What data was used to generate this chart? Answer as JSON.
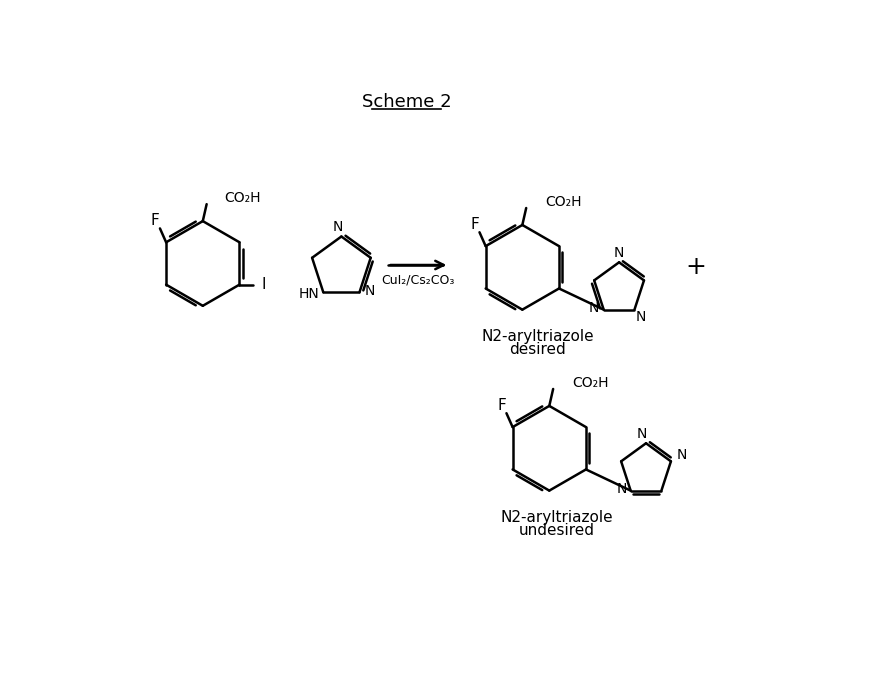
{
  "title": "Scheme 2",
  "background_color": "#ffffff",
  "line_color": "#000000",
  "text_color": "#000000",
  "figsize": [
    8.96,
    6.94
  ],
  "dpi": 100,
  "label1_line1": "N2-aryltriazole",
  "label1_line2": "desired",
  "label2_line1": "N2-aryltriazole",
  "label2_line2": "undesired",
  "reagent_text": "CuI₂/Cs₂CO₃"
}
